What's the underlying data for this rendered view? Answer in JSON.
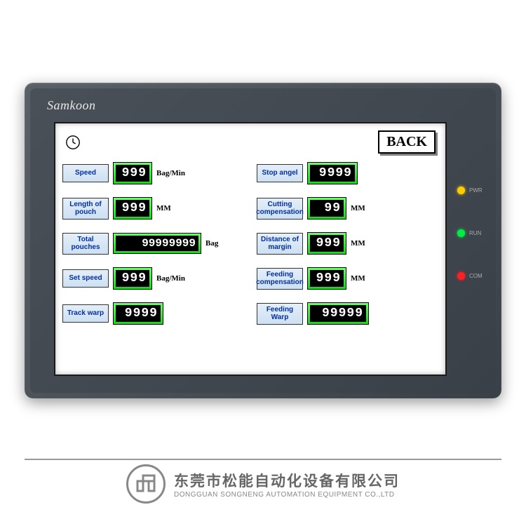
{
  "device": {
    "brand": "Samkoon",
    "bezel_color_start": "#5a6068",
    "bezel_color_end": "#3a4048"
  },
  "leds": [
    {
      "label": "PWR",
      "color": "#ffcc00"
    },
    {
      "label": "RUN",
      "color": "#00ee44"
    },
    {
      "label": "COM",
      "color": "#ff2020"
    }
  ],
  "screen": {
    "background": "#ffffff",
    "back_button": "BACK",
    "label_style": {
      "bg_gradient_start": "#e4eef8",
      "bg_gradient_end": "#cde0f2",
      "text_color": "#0030a0",
      "font_size": 10
    },
    "segment_style": {
      "frame_color_start": "#6aff6a",
      "frame_color_end": "#18d818",
      "bg_color": "#000000",
      "text_color": "#ffffff",
      "font_size": 18
    },
    "fields_left": [
      {
        "name": "speed",
        "label": "Speed",
        "value": "999",
        "width": "w3",
        "unit": "Bag/Min"
      },
      {
        "name": "length-of-pouch",
        "label": "Length of pouch",
        "value": "999",
        "width": "w3",
        "unit": "MM"
      },
      {
        "name": "total-pouches",
        "label": "Total pouches",
        "value": "99999999",
        "width": "w8",
        "unit": "Bag"
      },
      {
        "name": "set-speed",
        "label": "Set speed",
        "value": "999",
        "width": "w3",
        "unit": "Bag/Min"
      },
      {
        "name": "track-warp",
        "label": "Track warp",
        "value": "9999",
        "width": "w4",
        "unit": ""
      }
    ],
    "fields_right": [
      {
        "name": "stop-angel",
        "label": "Stop angel",
        "value": "9999",
        "width": "w4",
        "unit": ""
      },
      {
        "name": "cutting-compensation",
        "label": "Cutting compensation",
        "value": "99",
        "width": "w3",
        "unit": "MM"
      },
      {
        "name": "distance-of-margin",
        "label": "Distance of margin",
        "value": "999",
        "width": "w3",
        "unit": "MM"
      },
      {
        "name": "feeding-compensation",
        "label": "Feeding compensation",
        "value": "999",
        "width": "w3",
        "unit": "MM"
      },
      {
        "name": "feeding-warp",
        "label": "Feeding Warp",
        "value": "99999",
        "width": "w5",
        "unit": ""
      }
    ]
  },
  "footer": {
    "cn": "东莞市松能自动化设备有限公司",
    "en": "DONGGUAN SONGNENG AUTOMATION EQUIPMENT CO.,LTD"
  }
}
